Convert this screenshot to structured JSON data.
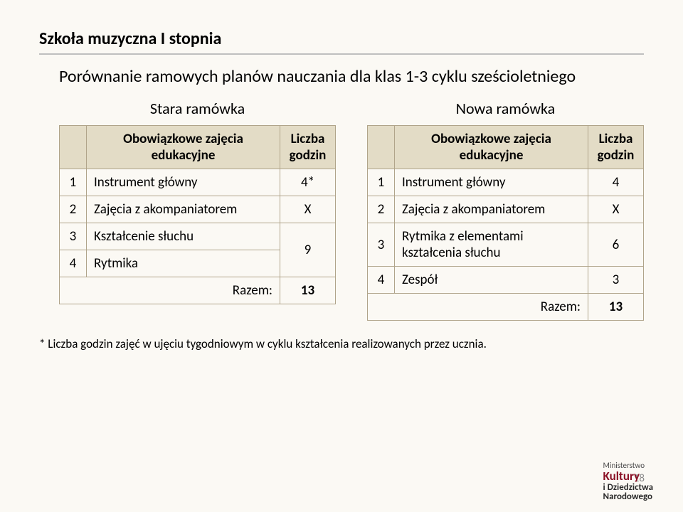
{
  "title": "Szkoła muzyczna I stopnia",
  "subtitle": "Porównanie ramowych planów nauczania dla klas 1-3 cyklu sześcioletniego",
  "left": {
    "caption": "Stara ramówka",
    "head1": "Obowiązkowe zajęcia edukacyjne",
    "head2": "Liczba godzin",
    "rows": [
      {
        "n": "1",
        "label": "Instrument główny",
        "val": "4*"
      },
      {
        "n": "2",
        "label": "Zajęcia z akompaniatorem",
        "val": "X"
      },
      {
        "n": "3",
        "label": "Kształcenie słuchu",
        "val": ""
      },
      {
        "n": "4",
        "label": "Rytmika",
        "val": "9"
      }
    ],
    "merged34_val": "9",
    "total_label": "Razem:",
    "total_val": "13"
  },
  "right": {
    "caption": "Nowa ramówka",
    "head1": "Obowiązkowe zajęcia edukacyjne",
    "head2": "Liczba godzin",
    "rows": [
      {
        "n": "1",
        "label": "Instrument główny",
        "val": "4"
      },
      {
        "n": "2",
        "label": "Zajęcia z akompaniatorem",
        "val": "X"
      },
      {
        "n": "3",
        "label": "Rytmika z elementami kształcenia słuchu",
        "val": "6"
      },
      {
        "n": "4",
        "label": "Zespół",
        "val": "3"
      }
    ],
    "total_label": "Razem:",
    "total_val": "13"
  },
  "footnote": "* Liczba godzin zajęć w ujęciu tygodniowym w cyklu kształcenia realizowanych przez ucznia.",
  "pagenum": "18",
  "ministry": {
    "l1": "Ministerstwo",
    "l2": "Kultury",
    "l3": "i Dziedzictwa",
    "l4": "Narodowego"
  }
}
